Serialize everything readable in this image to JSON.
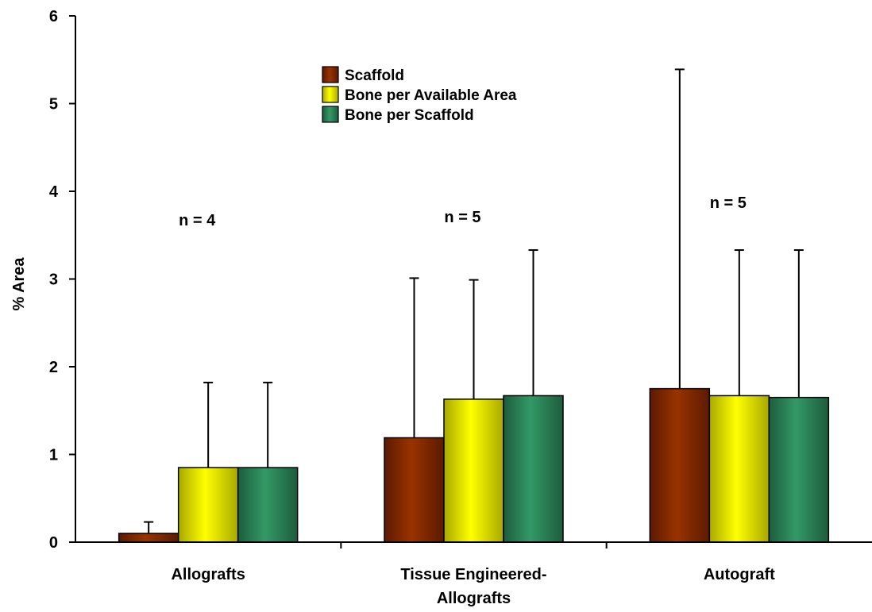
{
  "chart_data": {
    "type": "bar",
    "title": "",
    "xlabel": "",
    "ylabel": "% Area",
    "ylim": [
      0,
      6
    ],
    "yticks": [
      "0",
      "1",
      "2",
      "3",
      "4",
      "5",
      "6"
    ],
    "grid": false,
    "legend_position": "top-center",
    "categories": [
      [
        "Allografts"
      ],
      [
        "Tissue Engineered-",
        "Allografts"
      ],
      [
        "Autograft"
      ]
    ],
    "annotations": [
      "n = 4",
      "n = 5",
      "n = 5"
    ],
    "series": [
      {
        "name": "Scaffold",
        "color": "#993300",
        "values": [
          0.1,
          1.19,
          1.75
        ],
        "errors": [
          0.13,
          1.82,
          3.64
        ]
      },
      {
        "name": "Bone per Available Area",
        "color": "#ffff00",
        "values": [
          0.85,
          1.63,
          1.67
        ],
        "errors": [
          0.97,
          1.36,
          1.66
        ]
      },
      {
        "name": "Bone per Scaffold",
        "color": "#339966",
        "values": [
          0.85,
          1.67,
          1.65
        ],
        "errors": [
          0.97,
          1.66,
          1.68
        ]
      }
    ]
  }
}
